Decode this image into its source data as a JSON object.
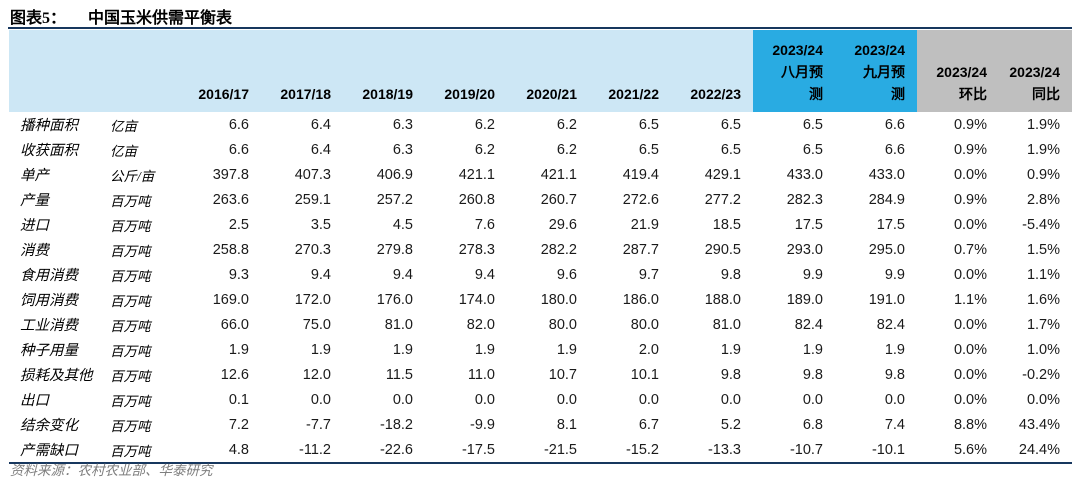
{
  "title": {
    "tag": "图表5：",
    "text": "中国玉米供需平衡表"
  },
  "footer": {
    "source": "资料来源：农村农业部、华泰研究"
  },
  "colors": {
    "header_light_blue": "#CDE7F5",
    "highlight_blue": "#29ABE2",
    "highlight_gray": "#BFBFBF",
    "accent_navy": "#17375E"
  },
  "chart_data": {
    "type": "table",
    "title": "中国玉米供需平衡表",
    "columns": [
      {
        "key": "label",
        "lines": [],
        "group": "plain"
      },
      {
        "key": "unit",
        "lines": [],
        "group": "plain"
      },
      {
        "key": "y2016_17",
        "lines": [
          "2016/17"
        ],
        "group": "plain"
      },
      {
        "key": "y2017_18",
        "lines": [
          "2017/18"
        ],
        "group": "plain"
      },
      {
        "key": "y2018_19",
        "lines": [
          "2018/19"
        ],
        "group": "plain"
      },
      {
        "key": "y2019_20",
        "lines": [
          "2019/20"
        ],
        "group": "plain"
      },
      {
        "key": "y2020_21",
        "lines": [
          "2020/21"
        ],
        "group": "plain"
      },
      {
        "key": "y2021_22",
        "lines": [
          "2021/22"
        ],
        "group": "plain"
      },
      {
        "key": "y2022_23",
        "lines": [
          "2022/23"
        ],
        "group": "plain"
      },
      {
        "key": "y2023_24_aug",
        "lines": [
          "2023/24",
          "八月预",
          "测"
        ],
        "group": "blue"
      },
      {
        "key": "y2023_24_sep",
        "lines": [
          "2023/24",
          "九月预",
          "测"
        ],
        "group": "blue"
      },
      {
        "key": "mom",
        "lines": [
          "2023/24",
          "环比"
        ],
        "group": "gray"
      },
      {
        "key": "yoy",
        "lines": [
          "2023/24",
          "同比"
        ],
        "group": "gray"
      }
    ],
    "rows": [
      {
        "label": "播种面积",
        "unit": "亿亩",
        "values": [
          "6.6",
          "6.4",
          "6.3",
          "6.2",
          "6.2",
          "6.5",
          "6.5",
          "6.5",
          "6.6",
          "0.9%",
          "1.9%"
        ]
      },
      {
        "label": "收获面积",
        "unit": "亿亩",
        "values": [
          "6.6",
          "6.4",
          "6.3",
          "6.2",
          "6.2",
          "6.5",
          "6.5",
          "6.5",
          "6.6",
          "0.9%",
          "1.9%"
        ]
      },
      {
        "label": "单产",
        "unit": "公斤/亩",
        "values": [
          "397.8",
          "407.3",
          "406.9",
          "421.1",
          "421.1",
          "419.4",
          "429.1",
          "433.0",
          "433.0",
          "0.0%",
          "0.9%"
        ]
      },
      {
        "label": "产量",
        "unit": "百万吨",
        "values": [
          "263.6",
          "259.1",
          "257.2",
          "260.8",
          "260.7",
          "272.6",
          "277.2",
          "282.3",
          "284.9",
          "0.9%",
          "2.8%"
        ]
      },
      {
        "label": "进口",
        "unit": "百万吨",
        "values": [
          "2.5",
          "3.5",
          "4.5",
          "7.6",
          "29.6",
          "21.9",
          "18.5",
          "17.5",
          "17.5",
          "0.0%",
          "-5.4%"
        ]
      },
      {
        "label": "消费",
        "unit": "百万吨",
        "values": [
          "258.8",
          "270.3",
          "279.8",
          "278.3",
          "282.2",
          "287.7",
          "290.5",
          "293.0",
          "295.0",
          "0.7%",
          "1.5%"
        ]
      },
      {
        "label": "食用消费",
        "unit": "百万吨",
        "values": [
          "9.3",
          "9.4",
          "9.4",
          "9.4",
          "9.6",
          "9.7",
          "9.8",
          "9.9",
          "9.9",
          "0.0%",
          "1.1%"
        ]
      },
      {
        "label": "饲用消费",
        "unit": "百万吨",
        "values": [
          "169.0",
          "172.0",
          "176.0",
          "174.0",
          "180.0",
          "186.0",
          "188.0",
          "189.0",
          "191.0",
          "1.1%",
          "1.6%"
        ]
      },
      {
        "label": "工业消费",
        "unit": "百万吨",
        "values": [
          "66.0",
          "75.0",
          "81.0",
          "82.0",
          "80.0",
          "80.0",
          "81.0",
          "82.4",
          "82.4",
          "0.0%",
          "1.7%"
        ]
      },
      {
        "label": "种子用量",
        "unit": "百万吨",
        "values": [
          "1.9",
          "1.9",
          "1.9",
          "1.9",
          "1.9",
          "2.0",
          "1.9",
          "1.9",
          "1.9",
          "0.0%",
          "1.0%"
        ]
      },
      {
        "label": "损耗及其他",
        "unit": "百万吨",
        "values": [
          "12.6",
          "12.0",
          "11.5",
          "11.0",
          "10.7",
          "10.1",
          "9.8",
          "9.8",
          "9.8",
          "0.0%",
          "-0.2%"
        ]
      },
      {
        "label": "出口",
        "unit": "百万吨",
        "values": [
          "0.1",
          "0.0",
          "0.0",
          "0.0",
          "0.0",
          "0.0",
          "0.0",
          "0.0",
          "0.0",
          "0.0%",
          "0.0%"
        ]
      },
      {
        "label": "结余变化",
        "unit": "百万吨",
        "values": [
          "7.2",
          "-7.7",
          "-18.2",
          "-9.9",
          "8.1",
          "6.7",
          "5.2",
          "6.8",
          "7.4",
          "8.8%",
          "43.4%"
        ]
      },
      {
        "label": "产需缺口",
        "unit": "百万吨",
        "values": [
          "4.8",
          "-11.2",
          "-22.6",
          "-17.5",
          "-21.5",
          "-15.2",
          "-13.3",
          "-10.7",
          "-10.1",
          "5.6%",
          "24.4%"
        ]
      }
    ]
  }
}
